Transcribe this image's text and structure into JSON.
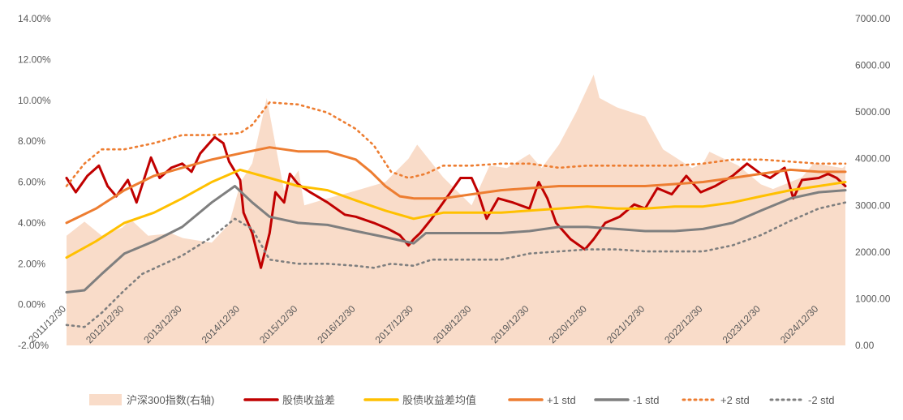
{
  "chart_data": {
    "type": "line",
    "x": [
      "2011/12/30",
      "2012/12/30",
      "2013/12/30",
      "2014/12/30",
      "2015/12/30",
      "2016/12/30",
      "2017/12/30",
      "2018/12/30",
      "2019/12/30",
      "2020/12/30",
      "2021/12/30",
      "2022/12/30",
      "2023/12/30",
      "2024/12/30"
    ],
    "x_tick_labels": [
      "2011/12/30",
      "2012/12/30",
      "2013/12/30",
      "2014/12/30",
      "2015/12/30",
      "2016/12/30",
      "2017/12/30",
      "2018/12/30",
      "2019/12/30",
      "2020/12/30",
      "2021/12/30",
      "2022/12/30",
      "2023/12/30",
      "2024/12/30"
    ],
    "y_left": {
      "min": -2.0,
      "max": 14.0,
      "ticks": [
        "-2.00%",
        "0.00%",
        "2.00%",
        "4.00%",
        "6.00%",
        "8.00%",
        "10.00%",
        "12.00%",
        "14.00%"
      ]
    },
    "y_right": {
      "min": 0,
      "max": 7000,
      "ticks": [
        "0.00",
        "1000.00",
        "2000.00",
        "3000.00",
        "4000.00",
        "5000.00",
        "6000.00",
        "7000.00"
      ]
    },
    "grid": false,
    "legend_position": "bottom",
    "series": [
      {
        "name": "沪深300指数(右轴)",
        "axis": "right",
        "style": "area",
        "color": "#f9dcc9",
        "points": [
          [
            2011.99,
            2350
          ],
          [
            2012.3,
            2650
          ],
          [
            2012.6,
            2350
          ],
          [
            2012.95,
            2520
          ],
          [
            2013.1,
            2700
          ],
          [
            2013.4,
            2350
          ],
          [
            2013.8,
            2400
          ],
          [
            2014.0,
            2300
          ],
          [
            2014.5,
            2200
          ],
          [
            2014.8,
            2600
          ],
          [
            2015.0,
            3500
          ],
          [
            2015.2,
            3900
          ],
          [
            2015.45,
            5300
          ],
          [
            2015.6,
            4300
          ],
          [
            2015.75,
            3300
          ],
          [
            2016.0,
            3750
          ],
          [
            2016.1,
            3000
          ],
          [
            2016.5,
            3150
          ],
          [
            2016.95,
            3300
          ],
          [
            2017.5,
            3500
          ],
          [
            2017.9,
            4000
          ],
          [
            2018.05,
            4300
          ],
          [
            2018.5,
            3600
          ],
          [
            2018.99,
            3000
          ],
          [
            2019.3,
            3850
          ],
          [
            2019.6,
            3800
          ],
          [
            2019.99,
            4100
          ],
          [
            2020.2,
            3800
          ],
          [
            2020.5,
            4300
          ],
          [
            2020.8,
            5000
          ],
          [
            2021.1,
            5800
          ],
          [
            2021.2,
            5300
          ],
          [
            2021.5,
            5100
          ],
          [
            2021.99,
            4900
          ],
          [
            2022.3,
            4200
          ],
          [
            2022.8,
            3800
          ],
          [
            2022.99,
            3900
          ],
          [
            2023.1,
            4150
          ],
          [
            2023.6,
            3850
          ],
          [
            2023.99,
            3450
          ],
          [
            2024.2,
            3350
          ],
          [
            2024.7,
            3600
          ],
          [
            2024.9,
            3900
          ],
          [
            2025.4,
            3800
          ],
          [
            2025.45,
            3850
          ]
        ]
      },
      {
        "name": "股债收益差",
        "axis": "left",
        "style": "line",
        "color": "#c00000",
        "points": [
          [
            2011.99,
            6.2
          ],
          [
            2012.15,
            5.5
          ],
          [
            2012.35,
            6.3
          ],
          [
            2012.55,
            6.8
          ],
          [
            2012.7,
            5.8
          ],
          [
            2012.85,
            5.3
          ],
          [
            2013.05,
            6.1
          ],
          [
            2013.2,
            5.0
          ],
          [
            2013.45,
            7.2
          ],
          [
            2013.6,
            6.2
          ],
          [
            2013.8,
            6.7
          ],
          [
            2013.99,
            6.9
          ],
          [
            2014.15,
            6.5
          ],
          [
            2014.3,
            7.4
          ],
          [
            2014.55,
            8.2
          ],
          [
            2014.7,
            7.9
          ],
          [
            2014.8,
            7.0
          ],
          [
            2014.99,
            6.1
          ],
          [
            2015.05,
            4.5
          ],
          [
            2015.2,
            3.5
          ],
          [
            2015.35,
            1.8
          ],
          [
            2015.5,
            3.5
          ],
          [
            2015.6,
            5.5
          ],
          [
            2015.75,
            5.0
          ],
          [
            2015.85,
            6.4
          ],
          [
            2015.99,
            5.9
          ],
          [
            2016.2,
            5.5
          ],
          [
            2016.5,
            5.0
          ],
          [
            2016.8,
            4.4
          ],
          [
            2016.99,
            4.3
          ],
          [
            2017.3,
            4.0
          ],
          [
            2017.55,
            3.7
          ],
          [
            2017.75,
            3.4
          ],
          [
            2017.9,
            2.9
          ],
          [
            2017.99,
            3.2
          ],
          [
            2018.1,
            3.5
          ],
          [
            2018.3,
            4.2
          ],
          [
            2018.55,
            5.2
          ],
          [
            2018.8,
            6.2
          ],
          [
            2018.99,
            6.2
          ],
          [
            2019.1,
            5.5
          ],
          [
            2019.25,
            4.2
          ],
          [
            2019.45,
            5.2
          ],
          [
            2019.7,
            5.0
          ],
          [
            2019.99,
            4.7
          ],
          [
            2020.15,
            6.0
          ],
          [
            2020.3,
            5.2
          ],
          [
            2020.45,
            4.0
          ],
          [
            2020.7,
            3.2
          ],
          [
            2020.95,
            2.7
          ],
          [
            2021.1,
            3.2
          ],
          [
            2021.3,
            4.0
          ],
          [
            2021.55,
            4.3
          ],
          [
            2021.8,
            4.9
          ],
          [
            2021.99,
            4.7
          ],
          [
            2022.2,
            5.7
          ],
          [
            2022.45,
            5.4
          ],
          [
            2022.7,
            6.3
          ],
          [
            2022.95,
            5.5
          ],
          [
            2023.2,
            5.8
          ],
          [
            2023.5,
            6.3
          ],
          [
            2023.75,
            6.9
          ],
          [
            2023.99,
            6.4
          ],
          [
            2024.15,
            6.2
          ],
          [
            2024.4,
            6.7
          ],
          [
            2024.55,
            5.2
          ],
          [
            2024.7,
            6.1
          ],
          [
            2024.99,
            6.2
          ],
          [
            2025.15,
            6.4
          ],
          [
            2025.3,
            6.2
          ],
          [
            2025.45,
            5.8
          ]
        ]
      },
      {
        "name": "股债收益差均值",
        "axis": "left",
        "style": "line",
        "color": "#ffc000",
        "points": [
          [
            2011.99,
            2.3
          ],
          [
            2012.5,
            3.1
          ],
          [
            2012.99,
            4.0
          ],
          [
            2013.5,
            4.5
          ],
          [
            2013.99,
            5.2
          ],
          [
            2014.5,
            6.0
          ],
          [
            2014.99,
            6.6
          ],
          [
            2015.5,
            6.2
          ],
          [
            2015.99,
            5.8
          ],
          [
            2016.5,
            5.6
          ],
          [
            2016.99,
            5.1
          ],
          [
            2017.5,
            4.6
          ],
          [
            2017.99,
            4.2
          ],
          [
            2018.5,
            4.5
          ],
          [
            2018.99,
            4.5
          ],
          [
            2019.5,
            4.5
          ],
          [
            2019.99,
            4.6
          ],
          [
            2020.5,
            4.7
          ],
          [
            2020.99,
            4.8
          ],
          [
            2021.5,
            4.7
          ],
          [
            2021.99,
            4.7
          ],
          [
            2022.5,
            4.8
          ],
          [
            2022.99,
            4.8
          ],
          [
            2023.5,
            5.0
          ],
          [
            2023.99,
            5.3
          ],
          [
            2024.5,
            5.6
          ],
          [
            2024.99,
            5.8
          ],
          [
            2025.45,
            6.0
          ]
        ]
      },
      {
        "name": "+1 std",
        "axis": "left",
        "style": "line",
        "color": "#ed7d31",
        "points": [
          [
            2011.99,
            4.0
          ],
          [
            2012.5,
            4.7
          ],
          [
            2012.99,
            5.6
          ],
          [
            2013.5,
            6.3
          ],
          [
            2013.99,
            6.7
          ],
          [
            2014.5,
            7.1
          ],
          [
            2014.99,
            7.4
          ],
          [
            2015.5,
            7.7
          ],
          [
            2015.99,
            7.5
          ],
          [
            2016.5,
            7.5
          ],
          [
            2016.99,
            7.1
          ],
          [
            2017.25,
            6.5
          ],
          [
            2017.5,
            5.8
          ],
          [
            2017.75,
            5.3
          ],
          [
            2017.99,
            5.2
          ],
          [
            2018.5,
            5.2
          ],
          [
            2018.99,
            5.4
          ],
          [
            2019.5,
            5.6
          ],
          [
            2019.99,
            5.7
          ],
          [
            2020.5,
            5.8
          ],
          [
            2020.99,
            5.8
          ],
          [
            2021.5,
            5.8
          ],
          [
            2021.99,
            5.8
          ],
          [
            2022.5,
            5.9
          ],
          [
            2022.99,
            6.0
          ],
          [
            2023.5,
            6.2
          ],
          [
            2023.99,
            6.4
          ],
          [
            2024.5,
            6.6
          ],
          [
            2024.99,
            6.5
          ],
          [
            2025.45,
            6.5
          ]
        ]
      },
      {
        "name": "-1 std",
        "axis": "left",
        "style": "line",
        "color": "#7f7f7f",
        "points": [
          [
            2011.99,
            0.6
          ],
          [
            2012.3,
            0.7
          ],
          [
            2012.6,
            1.5
          ],
          [
            2012.99,
            2.5
          ],
          [
            2013.5,
            3.1
          ],
          [
            2013.99,
            3.8
          ],
          [
            2014.5,
            5.0
          ],
          [
            2014.9,
            5.8
          ],
          [
            2015.2,
            5.0
          ],
          [
            2015.5,
            4.3
          ],
          [
            2015.99,
            4.0
          ],
          [
            2016.5,
            3.9
          ],
          [
            2016.99,
            3.6
          ],
          [
            2017.5,
            3.3
          ],
          [
            2017.99,
            3.0
          ],
          [
            2018.2,
            3.5
          ],
          [
            2018.5,
            3.5
          ],
          [
            2018.99,
            3.5
          ],
          [
            2019.5,
            3.5
          ],
          [
            2019.99,
            3.6
          ],
          [
            2020.5,
            3.8
          ],
          [
            2020.99,
            3.8
          ],
          [
            2021.5,
            3.7
          ],
          [
            2021.99,
            3.6
          ],
          [
            2022.5,
            3.6
          ],
          [
            2022.99,
            3.7
          ],
          [
            2023.5,
            4.0
          ],
          [
            2023.99,
            4.6
          ],
          [
            2024.5,
            5.2
          ],
          [
            2024.99,
            5.5
          ],
          [
            2025.45,
            5.6
          ]
        ]
      },
      {
        "name": "+2 std",
        "axis": "left",
        "style": "line",
        "color": "#ed7d31",
        "points": [
          [
            2011.99,
            5.8
          ],
          [
            2012.3,
            6.9
          ],
          [
            2012.6,
            7.6
          ],
          [
            2012.99,
            7.6
          ],
          [
            2013.5,
            7.9
          ],
          [
            2013.99,
            8.3
          ],
          [
            2014.5,
            8.3
          ],
          [
            2014.99,
            8.4
          ],
          [
            2015.2,
            8.8
          ],
          [
            2015.5,
            9.9
          ],
          [
            2015.99,
            9.8
          ],
          [
            2016.5,
            9.4
          ],
          [
            2016.99,
            8.6
          ],
          [
            2017.3,
            7.8
          ],
          [
            2017.6,
            6.5
          ],
          [
            2017.9,
            6.2
          ],
          [
            2018.2,
            6.4
          ],
          [
            2018.5,
            6.8
          ],
          [
            2018.99,
            6.8
          ],
          [
            2019.5,
            6.9
          ],
          [
            2019.99,
            6.9
          ],
          [
            2020.5,
            6.7
          ],
          [
            2020.99,
            6.8
          ],
          [
            2021.5,
            6.8
          ],
          [
            2021.99,
            6.8
          ],
          [
            2022.5,
            6.8
          ],
          [
            2022.99,
            6.9
          ],
          [
            2023.5,
            7.1
          ],
          [
            2023.99,
            7.1
          ],
          [
            2024.5,
            7.0
          ],
          [
            2024.99,
            6.9
          ],
          [
            2025.45,
            6.9
          ]
        ]
      },
      {
        "name": "-2 std",
        "axis": "left",
        "style": "line",
        "color": "#7f7f7f",
        "points": [
          [
            2011.99,
            -1.0
          ],
          [
            2012.3,
            -1.1
          ],
          [
            2012.6,
            -0.4
          ],
          [
            2012.99,
            0.7
          ],
          [
            2013.3,
            1.5
          ],
          [
            2013.99,
            2.4
          ],
          [
            2014.5,
            3.3
          ],
          [
            2014.9,
            4.2
          ],
          [
            2015.2,
            3.7
          ],
          [
            2015.5,
            2.2
          ],
          [
            2015.99,
            2.0
          ],
          [
            2016.5,
            2.0
          ],
          [
            2016.99,
            1.9
          ],
          [
            2017.3,
            1.8
          ],
          [
            2017.6,
            2.0
          ],
          [
            2017.99,
            1.9
          ],
          [
            2018.3,
            2.2
          ],
          [
            2018.99,
            2.2
          ],
          [
            2019.5,
            2.2
          ],
          [
            2019.99,
            2.5
          ],
          [
            2020.5,
            2.6
          ],
          [
            2020.99,
            2.7
          ],
          [
            2021.5,
            2.7
          ],
          [
            2021.99,
            2.6
          ],
          [
            2022.5,
            2.6
          ],
          [
            2022.99,
            2.6
          ],
          [
            2023.5,
            2.9
          ],
          [
            2023.99,
            3.4
          ],
          [
            2024.5,
            4.1
          ],
          [
            2024.99,
            4.7
          ],
          [
            2025.45,
            5.0
          ]
        ]
      }
    ],
    "legend": [
      {
        "name": "沪深300指数(右轴)",
        "kind": "area",
        "color": "#f9dcc9"
      },
      {
        "name": "股债收益差",
        "kind": "line",
        "color": "#c00000"
      },
      {
        "name": "股债收益差均值",
        "kind": "line",
        "color": "#ffc000"
      },
      {
        "name": "+1 std",
        "kind": "line",
        "color": "#ed7d31"
      },
      {
        "name": "-1 std",
        "kind": "line",
        "color": "#7f7f7f"
      },
      {
        "name": "+2 std",
        "kind": "dots",
        "color": "#ed7d31"
      },
      {
        "name": "-2 std",
        "kind": "dots",
        "color": "#7f7f7f"
      }
    ]
  }
}
